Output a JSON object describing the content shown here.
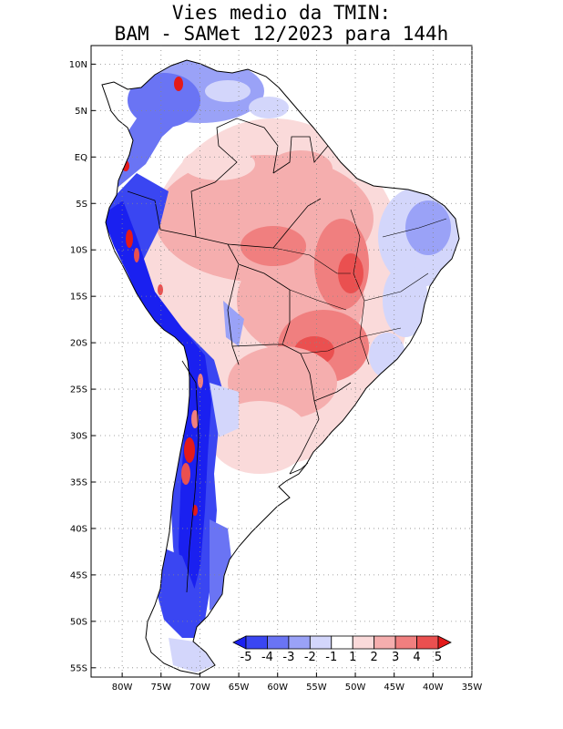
{
  "title": {
    "line1": "Vies medio da TMIN:",
    "line2": "BAM - SAMet 12/2023  para 144h"
  },
  "map": {
    "lon_range": [
      -84,
      -35
    ],
    "lat_range": [
      -56,
      12
    ],
    "lat_ticks": [
      "10N",
      "5N",
      "EQ",
      "5S",
      "10S",
      "15S",
      "20S",
      "25S",
      "30S",
      "35S",
      "40S",
      "45S",
      "50S",
      "55S"
    ],
    "lat_values": [
      10,
      5,
      0,
      -5,
      -10,
      -15,
      -20,
      -25,
      -30,
      -35,
      -40,
      -45,
      -50,
      -55
    ],
    "lon_ticks": [
      "80W",
      "75W",
      "70W",
      "65W",
      "60W",
      "55W",
      "50W",
      "45W",
      "40W",
      "35W"
    ],
    "lon_values": [
      -80,
      -75,
      -70,
      -65,
      -60,
      -55,
      -50,
      -45,
      -40,
      -35
    ],
    "regions": {
      "andes_negative_bias": "strong negative (blue) bias along Andes and Patagonia",
      "central_positive_bias": "positive (red) bias over central Brazil and Paraguay",
      "northeast_negative_bias": "negative bias over northeastern Brazil"
    }
  },
  "colorbar": {
    "labels": [
      "-5",
      "-4",
      "-3",
      "-2",
      "-1",
      "1",
      "2",
      "3",
      "4",
      "5"
    ],
    "bins": [
      {
        "range": "< -5",
        "color": "#1a20f0"
      },
      {
        "range": "-5 to -4",
        "color": "#3a46f2"
      },
      {
        "range": "-4 to -3",
        "color": "#6a74f4"
      },
      {
        "range": "-3 to -2",
        "color": "#9aa2f7"
      },
      {
        "range": "-2 to -1",
        "color": "#d3d6fb"
      },
      {
        "range": "-1 to 1",
        "color": "#ffffff"
      },
      {
        "range": "1 to 2",
        "color": "#fadada"
      },
      {
        "range": "2 to 3",
        "color": "#f5aeae"
      },
      {
        "range": "3 to 4",
        "color": "#f07f7f"
      },
      {
        "range": "4 to 5",
        "color": "#ea5050"
      },
      {
        "range": "> 5",
        "color": "#e41a1a"
      }
    ]
  }
}
